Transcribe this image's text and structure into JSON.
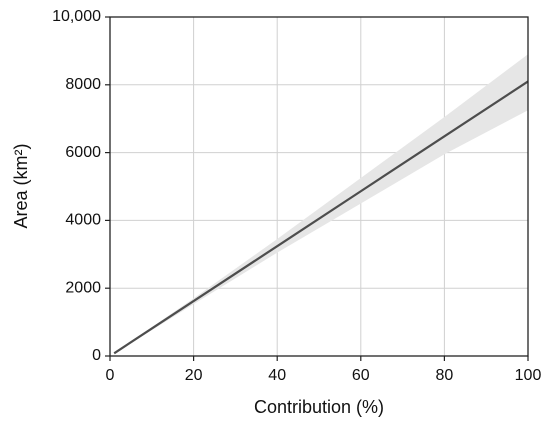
{
  "chart_data": {
    "type": "line",
    "x_label": "Contribution (%)",
    "y_label": "Area (km²)",
    "x": [
      1,
      20,
      40,
      60,
      80,
      100
    ],
    "series": [
      {
        "values": [
          80,
          1620,
          3240,
          4860,
          6480,
          8100
        ],
        "color": "#4d4d4d",
        "lower": [
          70,
          1530,
          3050,
          4500,
          5950,
          7250
        ],
        "upper": [
          90,
          1700,
          3450,
          5250,
          7050,
          8900
        ],
        "band_color": "#e6e6e6"
      }
    ],
    "xlim": [
      0,
      100
    ],
    "xticks": [
      0,
      20,
      40,
      60,
      80,
      100
    ],
    "ylim": [
      0,
      10000
    ],
    "yticks": [
      0,
      2000,
      4000,
      6000,
      8000,
      {
        "value": 10000,
        "label": "10,000"
      }
    ],
    "grid": true
  }
}
